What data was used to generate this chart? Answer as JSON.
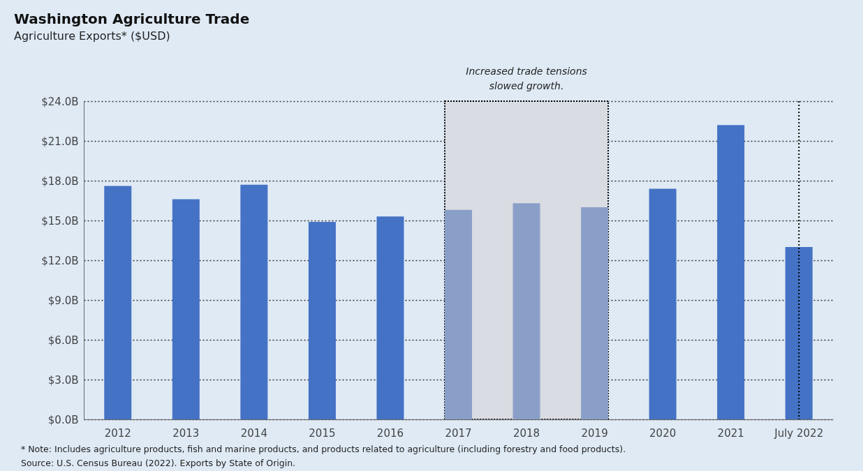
{
  "chart_data": {
    "type": "bar",
    "title": "Washington Agriculture Trade",
    "subtitle": "Agriculture Exports* ($USD)",
    "categories": [
      "2012",
      "2013",
      "2014",
      "2015",
      "2016",
      "2017",
      "2018",
      "2019",
      "2020",
      "2021",
      "July 2022"
    ],
    "values": [
      17.6,
      16.6,
      17.7,
      14.9,
      15.3,
      15.8,
      16.3,
      16.0,
      17.4,
      22.2,
      13.0
    ],
    "colors": [
      "#4472c4",
      "#4472c4",
      "#4472c4",
      "#4472c4",
      "#4472c4",
      "#8a9fc8",
      "#8a9fc8",
      "#8a9fc8",
      "#4472c4",
      "#4472c4",
      "#4472c4"
    ],
    "ylim": [
      0,
      24
    ],
    "yticks": [
      {
        "value": 0,
        "label": "$0.0B"
      },
      {
        "value": 3,
        "label": "$3.0B"
      },
      {
        "value": 6,
        "label": "$6.0B"
      },
      {
        "value": 9,
        "label": "$9.0B"
      },
      {
        "value": 12,
        "label": "$12.0B"
      },
      {
        "value": 15,
        "label": "$15.0B"
      },
      {
        "value": 18,
        "label": "$18.0B"
      },
      {
        "value": 21,
        "label": "$21.0B"
      },
      {
        "value": 24,
        "label": "$24.0B"
      }
    ],
    "grid": "y",
    "bands": [
      {
        "axis": "x",
        "from": "2017",
        "to": "2019",
        "label": "Increased trade tensions slowed growth.",
        "color": "#d9dce2"
      }
    ],
    "ref_lines": [
      {
        "axis": "x",
        "value": "July 2022",
        "line_style": "dotted"
      }
    ],
    "annotations": [
      "* Note: Includes agriculture products, fish and marine products, and products related to agriculture (including forestry and food products).",
      "Source: U.S. Census Bureau (2022). Exports by State of Origin."
    ]
  }
}
